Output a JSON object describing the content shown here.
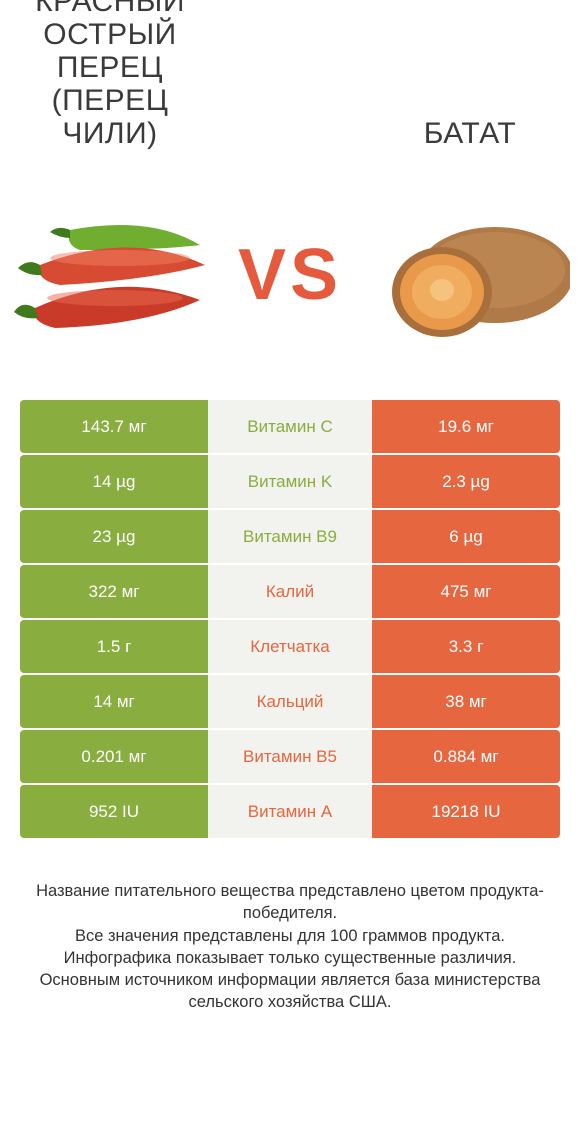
{
  "colors": {
    "green": "#8aad3f",
    "orange": "#e5663f",
    "row_bg": "#f2f2ef",
    "vs": "#e55a3c",
    "title": "#3a3a3a",
    "footer": "#333333"
  },
  "left_title": "КРАСНЫЙ ОСТРЫЙ ПЕРЕЦ (ПЕРЕЦ ЧИЛИ)",
  "right_title": "БАТАТ",
  "vs_label": "VS",
  "rows": [
    {
      "nutrient": "Витамин C",
      "left": "143.7 мг",
      "right": "19.6 мг",
      "winner": "left"
    },
    {
      "nutrient": "Витамин K",
      "left": "14 µg",
      "right": "2.3 µg",
      "winner": "left"
    },
    {
      "nutrient": "Витамин B9",
      "left": "23 µg",
      "right": "6 µg",
      "winner": "left"
    },
    {
      "nutrient": "Калий",
      "left": "322 мг",
      "right": "475 мг",
      "winner": "right"
    },
    {
      "nutrient": "Клетчатка",
      "left": "1.5 г",
      "right": "3.3 г",
      "winner": "right"
    },
    {
      "nutrient": "Кальций",
      "left": "14 мг",
      "right": "38 мг",
      "winner": "right"
    },
    {
      "nutrient": "Витамин B5",
      "left": "0.201 мг",
      "right": "0.884 мг",
      "winner": "right"
    },
    {
      "nutrient": "Витамин A",
      "left": "952 IU",
      "right": "19218 IU",
      "winner": "right"
    }
  ],
  "footer_lines": [
    "Название питательного вещества представлено цветом продукта-победителя.",
    "Все значения представлены для 100 граммов продукта.",
    "Инфографика показывает только существенные различия.",
    "Основным источником информации является база министерства сельского хозяйства США."
  ]
}
